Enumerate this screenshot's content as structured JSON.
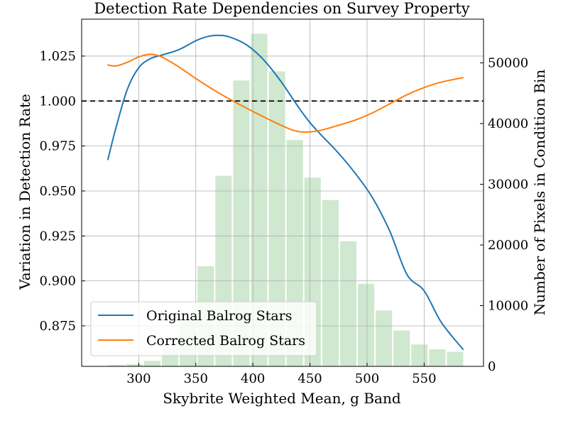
{
  "chart_data": {
    "type": "line",
    "title": "Detection Rate Dependencies on Survey Property",
    "xlabel": "Skybrite Weighted Mean, g Band",
    "ylabel": "Variation in Detection Rate",
    "y2label": "Number of Pixels in Condition Bin",
    "xlim": [
      250,
      602
    ],
    "ylim": [
      0.8525,
      1.0455
    ],
    "y2lim": [
      0,
      57200
    ],
    "xticks": [
      "300",
      "350",
      "400",
      "450",
      "500",
      "550"
    ],
    "xtick_values": [
      300,
      350,
      400,
      450,
      500,
      550
    ],
    "yticks": [
      "0.875",
      "0.900",
      "0.925",
      "0.950",
      "0.975",
      "1.000",
      "1.025"
    ],
    "ytick_values": [
      0.875,
      0.9,
      0.925,
      0.95,
      0.975,
      1.0,
      1.025
    ],
    "y2ticks": [
      "0",
      "10000",
      "20000",
      "30000",
      "40000",
      "50000"
    ],
    "y2tick_values": [
      0,
      10000,
      20000,
      30000,
      40000,
      50000
    ],
    "grid": true,
    "reference_line": 1.0,
    "legend_position": "lower-left",
    "histogram": {
      "color": "#a8d5a8",
      "bin_width": 15.6,
      "bins": [
        {
          "x": 280.7,
          "count": 200
        },
        {
          "x": 296.3,
          "count": 350
        },
        {
          "x": 311.9,
          "count": 900
        },
        {
          "x": 327.5,
          "count": 3000
        },
        {
          "x": 343.1,
          "count": 7400
        },
        {
          "x": 358.7,
          "count": 16500
        },
        {
          "x": 374.3,
          "count": 31400
        },
        {
          "x": 389.9,
          "count": 47100
        },
        {
          "x": 405.5,
          "count": 54800
        },
        {
          "x": 421.1,
          "count": 48600
        },
        {
          "x": 436.7,
          "count": 37300
        },
        {
          "x": 452.3,
          "count": 31100
        },
        {
          "x": 467.9,
          "count": 27400
        },
        {
          "x": 483.5,
          "count": 20600
        },
        {
          "x": 499.1,
          "count": 13600
        },
        {
          "x": 514.7,
          "count": 9200
        },
        {
          "x": 530.3,
          "count": 5900
        },
        {
          "x": 545.9,
          "count": 3600
        },
        {
          "x": 561.5,
          "count": 2800
        },
        {
          "x": 577.1,
          "count": 2400
        }
      ]
    },
    "series": [
      {
        "name": "Original Balrog Stars",
        "color": "#1f77b4",
        "x": [
          273,
          280,
          290,
          300,
          310,
          320,
          335,
          350,
          360,
          370,
          380,
          395,
          410,
          425,
          440,
          450,
          460,
          475,
          490,
          505,
          520,
          535,
          550,
          565,
          584
        ],
        "y": [
          0.9675,
          0.985,
          1.0065,
          1.0185,
          1.0235,
          1.0255,
          1.0285,
          1.0335,
          1.0358,
          1.0365,
          1.0355,
          1.031,
          1.0225,
          1.0105,
          0.9965,
          0.988,
          0.981,
          0.971,
          0.9595,
          0.946,
          0.9275,
          0.9035,
          0.8945,
          0.877,
          0.862
        ]
      },
      {
        "name": "Corrected Balrog Stars",
        "color": "#ff7f0e",
        "x": [
          273,
          280,
          290,
          300,
          310,
          320,
          335,
          350,
          370,
          390,
          410,
          430,
          440,
          450,
          460,
          475,
          490,
          505,
          520,
          535,
          550,
          565,
          584
        ],
        "y": [
          1.02,
          1.0195,
          1.0215,
          1.0245,
          1.026,
          1.0245,
          1.019,
          1.0125,
          1.0045,
          0.9975,
          0.991,
          0.985,
          0.983,
          0.9828,
          0.9838,
          0.9865,
          0.9895,
          0.9935,
          0.9985,
          1.0035,
          1.0075,
          1.0105,
          1.013
        ]
      }
    ]
  }
}
